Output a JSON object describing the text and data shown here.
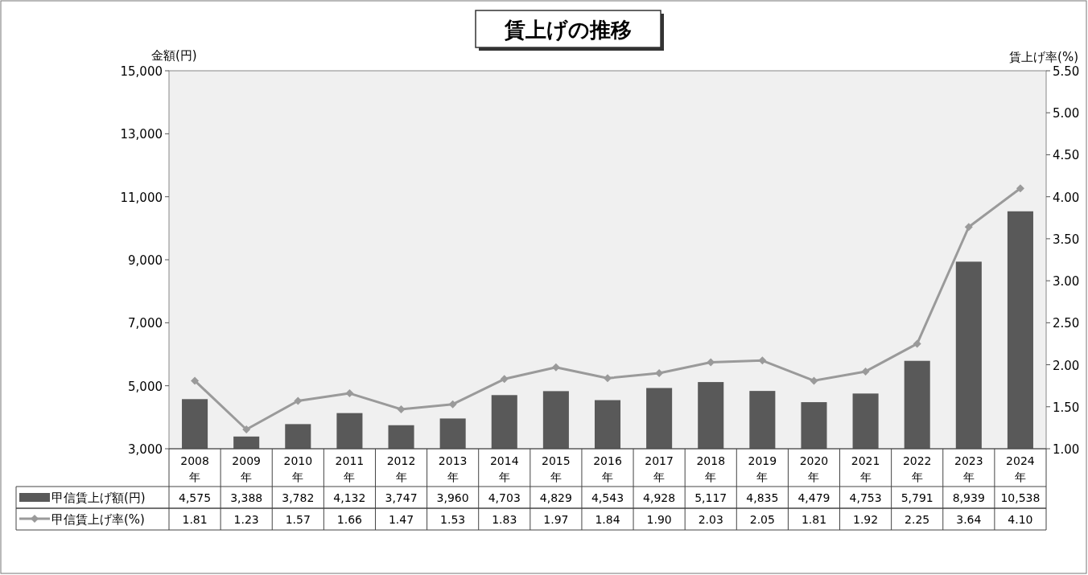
{
  "chart_data": {
    "type": "bar",
    "title": "賃上げの推移",
    "ylabel": "金額(円)",
    "y2label": "賃上げ率(%)",
    "categories": [
      "2008年",
      "2009年",
      "2010年",
      "2011年",
      "2012年",
      "2013年",
      "2014年",
      "2015年",
      "2016年",
      "2017年",
      "2018年",
      "2019年",
      "2020年",
      "2021年",
      "2022年",
      "2023年",
      "2024年"
    ],
    "series": [
      {
        "name": "甲信賃上げ額(円)",
        "color": "#595959",
        "values": [
          4575,
          3388,
          3782,
          4132,
          3747,
          3960,
          4703,
          4829,
          4543,
          4928,
          5117,
          4835,
          4479,
          4753,
          5791,
          8939,
          10538
        ],
        "value_labels": [
          "4,575",
          "3,388",
          "3,782",
          "4,132",
          "3,747",
          "3,960",
          "4,703",
          "4,829",
          "4,543",
          "4,928",
          "5,117",
          "4,835",
          "4,479",
          "4,753",
          "5,791",
          "8,939",
          "10,538"
        ]
      },
      {
        "name": "甲信賃上げ率(%)",
        "type": "line",
        "axis": "y2",
        "color": "#9a9a9a",
        "marker": "diamond",
        "values": [
          1.81,
          1.23,
          1.57,
          1.66,
          1.47,
          1.53,
          1.83,
          1.97,
          1.84,
          1.9,
          2.03,
          2.05,
          1.81,
          1.92,
          2.25,
          3.64,
          4.1
        ],
        "value_labels": [
          "1.81",
          "1.23",
          "1.57",
          "1.66",
          "1.47",
          "1.53",
          "1.83",
          "1.97",
          "1.84",
          "1.90",
          "2.03",
          "2.05",
          "1.81",
          "1.92",
          "2.25",
          "3.64",
          "4.10"
        ]
      }
    ],
    "ylim": [
      3000,
      15000
    ],
    "yticks": [
      {
        "value": 3000,
        "label": "3,000"
      },
      {
        "value": 5000,
        "label": "5,000"
      },
      {
        "value": 7000,
        "label": "7,000"
      },
      {
        "value": 9000,
        "label": "9,000"
      },
      {
        "value": 11000,
        "label": "11,000"
      },
      {
        "value": 13000,
        "label": "13,000"
      },
      {
        "value": 15000,
        "label": "15,000"
      }
    ],
    "y2lim": [
      1,
      5.5
    ],
    "y2ticks": [
      {
        "value": 1,
        "label": "1.00"
      },
      {
        "value": 1.5,
        "label": "1.50"
      },
      {
        "value": 2,
        "label": "2.00"
      },
      {
        "value": 2.5,
        "label": "2.50"
      },
      {
        "value": 3,
        "label": "3.00"
      },
      {
        "value": 3.5,
        "label": "3.50"
      },
      {
        "value": 4,
        "label": "4.00"
      },
      {
        "value": 4.5,
        "label": "4.50"
      },
      {
        "value": 5,
        "label": "5.00"
      },
      {
        "value": 5.5,
        "label": "5.50"
      }
    ],
    "legend": "bottom left"
  }
}
